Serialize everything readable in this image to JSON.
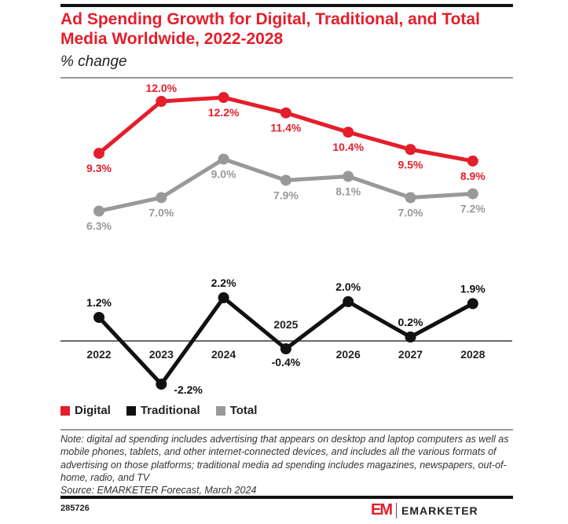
{
  "title": "Ad Spending Growth for Digital, Traditional, and Total Media Worldwide, 2022-2028",
  "subtitle": "% change",
  "chart_data": {
    "type": "line",
    "title": "Ad Spending Growth for Digital, Traditional, and Total Media Worldwide, 2022-2028",
    "ylabel": "% change",
    "categories": [
      "2022",
      "2023",
      "2024",
      "2025",
      "2026",
      "2027",
      "2028"
    ],
    "series": [
      {
        "name": "Digital",
        "color": "#e41e2b",
        "values": [
          9.3,
          12.0,
          12.2,
          11.4,
          10.4,
          9.5,
          8.9
        ],
        "labels": [
          "9.3%",
          "12.0%",
          "12.2%",
          "11.4%",
          "10.4%",
          "9.5%",
          "8.9%"
        ]
      },
      {
        "name": "Total",
        "color": "#999999",
        "values": [
          6.3,
          7.0,
          9.0,
          7.9,
          8.1,
          7.0,
          7.2
        ],
        "labels": [
          "6.3%",
          "7.0%",
          "9.0%",
          "7.9%",
          "8.1%",
          "7.0%",
          "7.2%"
        ]
      },
      {
        "name": "Traditional",
        "color": "#111111",
        "values": [
          1.2,
          -2.2,
          2.2,
          -0.4,
          2.0,
          0.2,
          1.9
        ],
        "labels": [
          "1.2%",
          "-2.2%",
          "2.2%",
          "-0.4%",
          "2.0%",
          "0.2%",
          "1.9%"
        ]
      }
    ],
    "legend": "bottom-left",
    "grid": false
  },
  "legend": [
    {
      "label": "Digital",
      "color": "#e41e2b"
    },
    {
      "label": "Traditional",
      "color": "#111111"
    },
    {
      "label": "Total",
      "color": "#999999"
    }
  ],
  "note": "Note: digital ad spending includes advertising that appears on desktop and laptop computers as well as mobile phones, tablets, and other internet-connected devices, and includes all the various formats of advertising on those platforms; traditional media ad spending includes magazines, newspapers, out-of-home, radio, and TV",
  "source": "Source: EMARKETER Forecast, March 2024",
  "chart_id": "285726",
  "brand": "EMARKETER",
  "logo_mark": "EM"
}
